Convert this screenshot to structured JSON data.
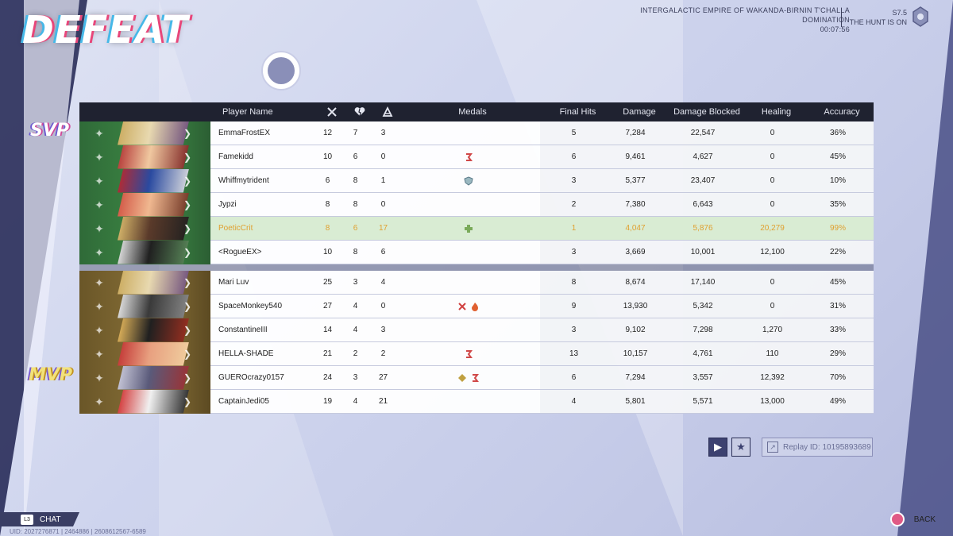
{
  "result": "DEFEAT",
  "match": {
    "map": "INTERGALACTIC EMPIRE OF WAKANDA-BIRNIN T'CHALLA",
    "mode": "DOMINATION",
    "time": "00:07:56",
    "season": "S7.5",
    "season_name": "THE HUNT IS ON"
  },
  "headers": {
    "player": "Player Name",
    "kills_icon": "swords-icon",
    "deaths_icon": "broken-heart-icon",
    "assists_icon": "assist-hand-icon",
    "medals": "Medals",
    "final_hits": "Final Hits",
    "damage": "Damage",
    "blocked": "Damage Blocked",
    "healing": "Healing",
    "accuracy": "Accuracy"
  },
  "tags": {
    "svp": "SVP",
    "mvp": "MVP"
  },
  "team1": [
    {
      "name": "EmmaFrostEX",
      "k": "12",
      "d": "7",
      "a": "3",
      "medals": [],
      "fh": "5",
      "dmg": "7,284",
      "blk": "22,547",
      "heal": "0",
      "acc": "36%"
    },
    {
      "name": "Famekidd",
      "k": "10",
      "d": "6",
      "a": "0",
      "medals": [
        "streak-medal"
      ],
      "fh": "6",
      "dmg": "9,461",
      "blk": "4,627",
      "heal": "0",
      "acc": "45%"
    },
    {
      "name": "Whiffmytrident",
      "k": "6",
      "d": "8",
      "a": "1",
      "medals": [
        "shield-medal"
      ],
      "fh": "3",
      "dmg": "5,377",
      "blk": "23,407",
      "heal": "0",
      "acc": "10%"
    },
    {
      "name": "Jypzi",
      "k": "8",
      "d": "8",
      "a": "0",
      "medals": [],
      "fh": "2",
      "dmg": "7,380",
      "blk": "6,643",
      "heal": "0",
      "acc": "35%"
    },
    {
      "name": "PoeticCrit",
      "k": "8",
      "d": "6",
      "a": "17",
      "medals": [
        "heal-medal"
      ],
      "fh": "1",
      "dmg": "4,047",
      "blk": "5,876",
      "heal": "20,279",
      "acc": "99%",
      "me": true
    },
    {
      "name": "<RogueEX>",
      "k": "10",
      "d": "8",
      "a": "6",
      "medals": [],
      "fh": "3",
      "dmg": "3,669",
      "blk": "10,001",
      "heal": "12,100",
      "acc": "22%"
    }
  ],
  "team2": [
    {
      "name": "Mari Luv",
      "k": "25",
      "d": "3",
      "a": "4",
      "medals": [],
      "fh": "8",
      "dmg": "8,674",
      "blk": "17,140",
      "heal": "0",
      "acc": "45%"
    },
    {
      "name": "SpaceMonkey540",
      "k": "27",
      "d": "4",
      "a": "0",
      "medals": [
        "kills-medal",
        "fire-medal"
      ],
      "fh": "9",
      "dmg": "13,930",
      "blk": "5,342",
      "heal": "0",
      "acc": "31%"
    },
    {
      "name": "ConstantineIII",
      "k": "14",
      "d": "4",
      "a": "3",
      "medals": [],
      "fh": "3",
      "dmg": "9,102",
      "blk": "7,298",
      "heal": "1,270",
      "acc": "33%"
    },
    {
      "name": "HELLA-SHADE",
      "k": "21",
      "d": "2",
      "a": "2",
      "medals": [
        "streak-medal"
      ],
      "fh": "13",
      "dmg": "10,157",
      "blk": "4,761",
      "heal": "110",
      "acc": "29%"
    },
    {
      "name": "GUEROcrazy0157",
      "k": "24",
      "d": "3",
      "a": "27",
      "medals": [
        "assist-medal",
        "streak-medal"
      ],
      "fh": "6",
      "dmg": "7,294",
      "blk": "3,557",
      "heal": "12,392",
      "acc": "70%"
    },
    {
      "name": "CaptainJedi05",
      "k": "19",
      "d": "4",
      "a": "21",
      "medals": [],
      "fh": "4",
      "dmg": "5,801",
      "blk": "5,571",
      "heal": "13,000",
      "acc": "49%"
    }
  ],
  "replay": {
    "label": "Replay ID: 10195893689"
  },
  "footer": {
    "chat_key": "L3",
    "chat": "CHAT",
    "uid": "UID: 2027276871 | 2464886 | 2608612567-6589",
    "back": "BACK"
  },
  "colors": {
    "team1": "#3e8a45",
    "team2": "#8a7238",
    "highlight": "#e0a030",
    "me_row": "#d9ecd3"
  }
}
